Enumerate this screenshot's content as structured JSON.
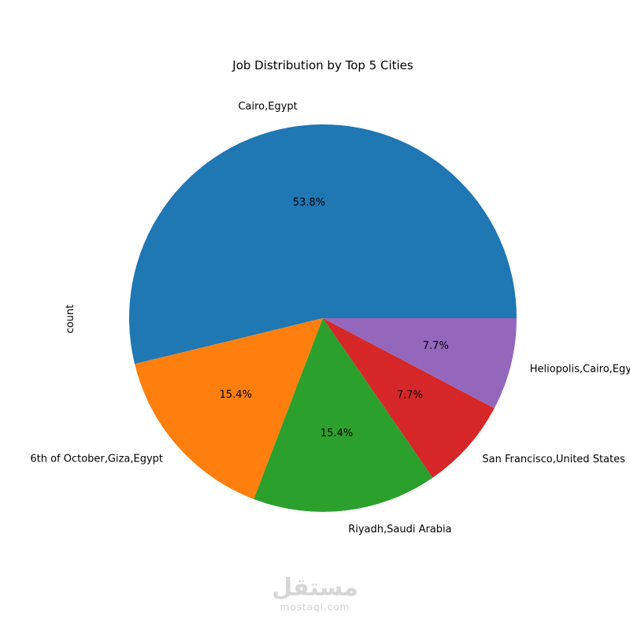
{
  "chart_data": {
    "type": "pie",
    "title": "Job Distribution by Top 5 Cities",
    "ylabel": "count",
    "categories": [
      "Cairo,Egypt",
      "6th of October,Giza,Egypt",
      "Riyadh,Saudi Arabia",
      "San Francisco,United States",
      "Heliopolis,Cairo,Egypt"
    ],
    "values": [
      53.8,
      15.4,
      15.4,
      7.7,
      7.7
    ],
    "percent_labels": [
      "53.8%",
      "15.4%",
      "15.4%",
      "7.7%",
      "7.7%"
    ],
    "colors": [
      "#1f77b4",
      "#ff7f0e",
      "#2ca02c",
      "#d62728",
      "#9467bd"
    ],
    "start_angle": 0,
    "direction": "counterclockwise"
  },
  "watermark": {
    "arabic": "مستقل",
    "latin": "mostaql.com"
  }
}
